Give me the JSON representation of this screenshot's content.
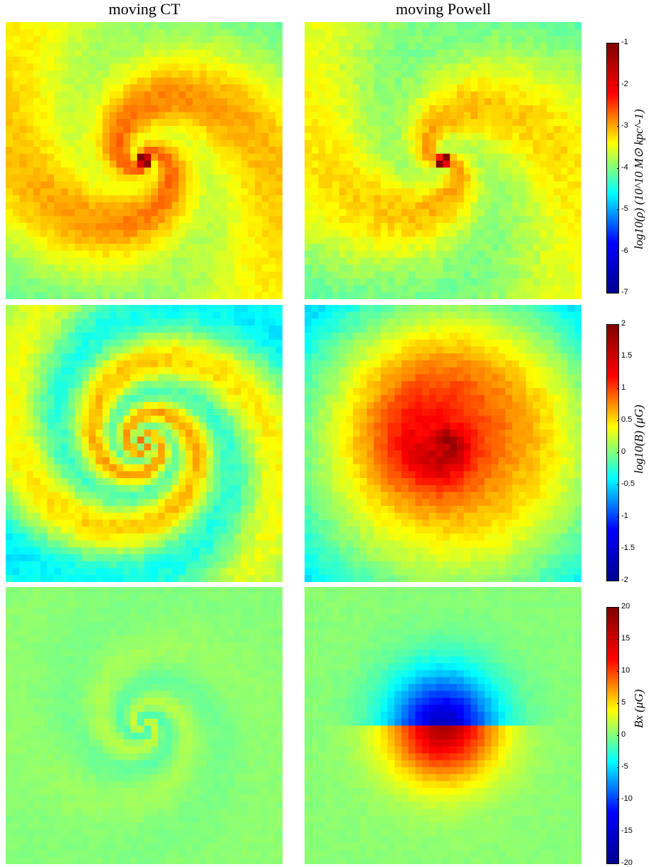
{
  "column_titles": [
    "moving CT",
    "moving Powell"
  ],
  "colorbars": [
    {
      "label": "log10(ρ) (10^10 M⊙ kpc^-1)",
      "ticks": [
        "-1",
        "-2",
        "-3",
        "-4",
        "-5",
        "-6",
        "-7"
      ],
      "min": -7,
      "max": -1
    },
    {
      "label": "log10(B) (μG)",
      "ticks": [
        "2",
        "1.5",
        "1",
        "0.5",
        "0",
        "-0.5",
        "-1",
        "-1.5",
        "-2"
      ],
      "min": -2,
      "max": 2
    },
    {
      "label": "Bx (μG)",
      "ticks": [
        "20",
        "15",
        "10",
        "5",
        "0",
        "-5",
        "-10",
        "-15",
        "-20"
      ],
      "min": -20,
      "max": 20
    }
  ],
  "colormap": [
    "#00008f",
    "#0000ff",
    "#00ffff",
    "#ffff00",
    "#ff0000",
    "#800000"
  ],
  "chart_data": [
    {
      "type": "heatmap",
      "title": "moving CT",
      "quantity": "log10(rho)",
      "row": 1,
      "pattern": "spiral density, peak at centre",
      "range": [
        -7,
        -1
      ]
    },
    {
      "type": "heatmap",
      "title": "moving Powell",
      "quantity": "log10(rho)",
      "row": 1,
      "pattern": "spiral density, peak at centre",
      "range": [
        -7,
        -1
      ]
    },
    {
      "type": "heatmap",
      "title": "moving CT",
      "quantity": "log10(B)",
      "row": 2,
      "pattern": "thin spiral field arms",
      "range": [
        -2,
        2
      ]
    },
    {
      "type": "heatmap",
      "title": "moving Powell",
      "quantity": "log10(B)",
      "row": 2,
      "pattern": "strong central field ~1.5-2",
      "range": [
        -2,
        2
      ]
    },
    {
      "type": "heatmap",
      "title": "moving CT",
      "quantity": "Bx",
      "row": 3,
      "pattern": "weak alternating spiral Bx",
      "range": [
        -20,
        20
      ]
    },
    {
      "type": "heatmap",
      "title": "moving Powell",
      "quantity": "Bx",
      "row": 3,
      "pattern": "dipole: negative above, positive below centre",
      "range": [
        -20,
        20
      ]
    }
  ]
}
